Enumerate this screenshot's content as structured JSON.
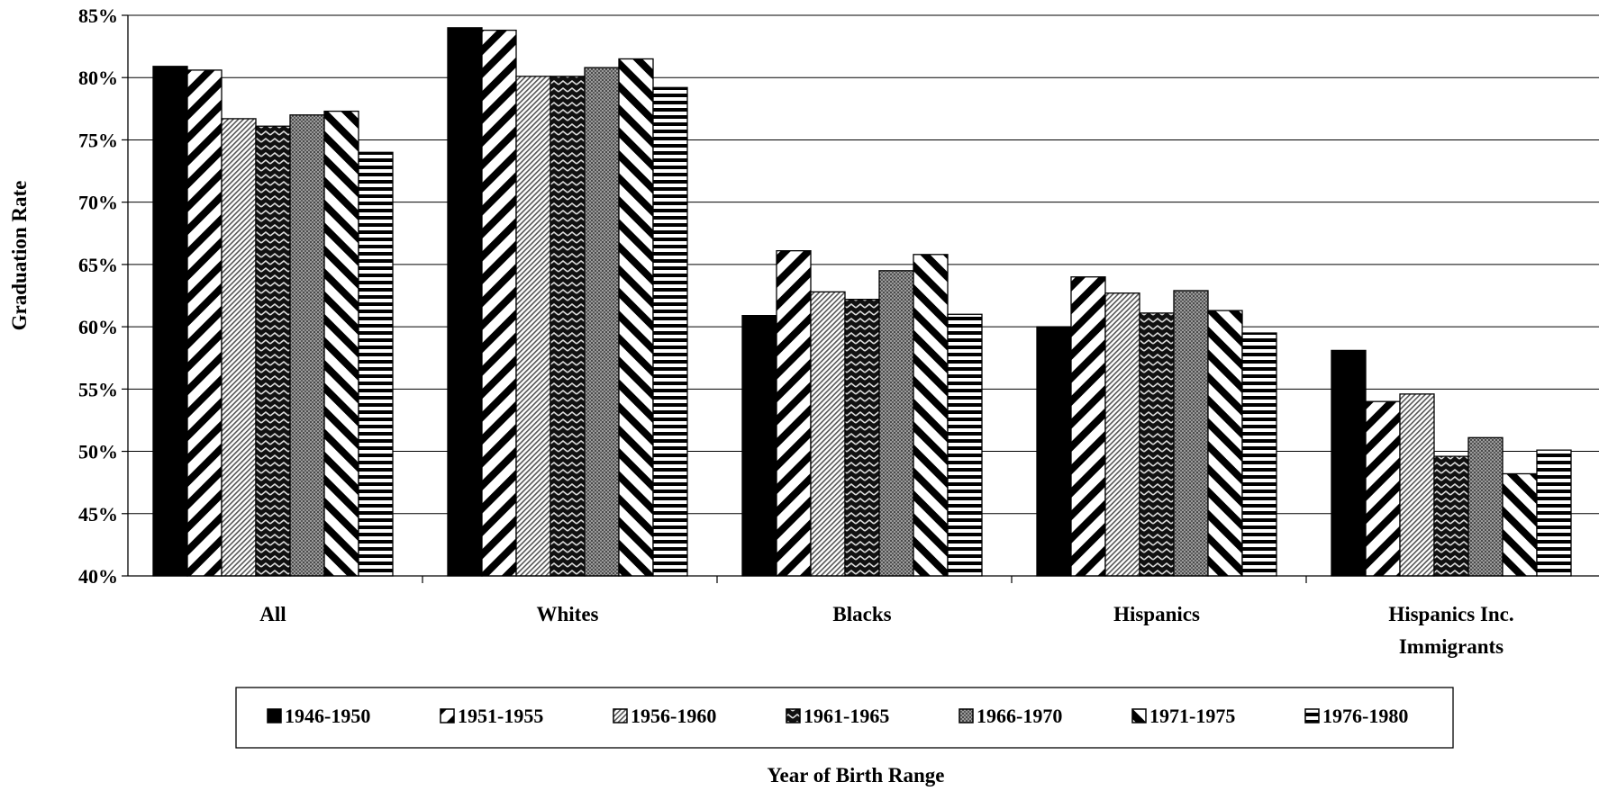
{
  "chart_data": {
    "type": "bar",
    "title": "",
    "xlabel": "Year of Birth Range",
    "ylabel": "Graduation Rate",
    "ylim": [
      40,
      85
    ],
    "y_ticks": [
      "40%",
      "45%",
      "50%",
      "55%",
      "60%",
      "65%",
      "70%",
      "75%",
      "80%",
      "85%"
    ],
    "categories": [
      "All",
      "Whites",
      "Blacks",
      "Hispanics",
      "Hispanics Inc. Immigrants"
    ],
    "category_lines": [
      [
        "All"
      ],
      [
        "Whites"
      ],
      [
        "Blacks"
      ],
      [
        "Hispanics"
      ],
      [
        "Hispanics Inc.",
        "Immigrants"
      ]
    ],
    "grid": true,
    "legend_position": "bottom",
    "series": [
      {
        "name": "1946-1950",
        "pattern": "solid",
        "values": [
          80.9,
          84.0,
          60.9,
          60.0,
          58.1
        ]
      },
      {
        "name": "1951-1955",
        "pattern": "diag-wide-down",
        "values": [
          80.6,
          83.8,
          66.1,
          64.0,
          54.0
        ]
      },
      {
        "name": "1956-1960",
        "pattern": "diag-fine",
        "values": [
          76.7,
          80.1,
          62.8,
          62.7,
          54.6
        ]
      },
      {
        "name": "1961-1965",
        "pattern": "zigzag-dark",
        "values": [
          76.1,
          80.1,
          62.2,
          61.1,
          49.6
        ]
      },
      {
        "name": "1966-1970",
        "pattern": "dotted-gray",
        "values": [
          77.0,
          80.8,
          64.5,
          62.9,
          51.1
        ]
      },
      {
        "name": "1971-1975",
        "pattern": "diag-wide-up",
        "values": [
          77.3,
          81.5,
          65.8,
          61.3,
          48.2
        ]
      },
      {
        "name": "1976-1980",
        "pattern": "horizontal",
        "values": [
          74.0,
          79.2,
          61.0,
          59.5,
          50.1
        ]
      }
    ]
  }
}
